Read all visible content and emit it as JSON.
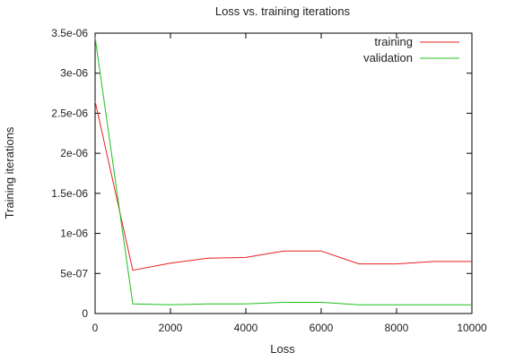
{
  "chart_data": {
    "type": "line",
    "title": "Loss vs. training iterations",
    "xlabel": "Loss",
    "ylabel": "Training iterations",
    "xlim": [
      0,
      10000
    ],
    "ylim": [
      0,
      3.5e-06
    ],
    "x_ticks": [
      0,
      2000,
      4000,
      6000,
      8000,
      10000
    ],
    "x_tick_labels": [
      "0",
      "2000",
      "4000",
      "6000",
      "8000",
      "10000"
    ],
    "y_ticks": [
      0,
      5e-07,
      1e-06,
      1.5e-06,
      2e-06,
      2.5e-06,
      3e-06,
      3.5e-06
    ],
    "y_tick_labels": [
      "0",
      "5e-07",
      "1e-06",
      "1.5e-06",
      "2e-06",
      "2.5e-06",
      "3e-06",
      "3.5e-06"
    ],
    "grid": false,
    "legend_position": "top-right",
    "series": [
      {
        "name": "training",
        "color": "#e8201f",
        "x": [
          0,
          1000,
          2000,
          3000,
          4000,
          5000,
          6000,
          7000,
          8000,
          9000,
          10000
        ],
        "y": [
          2.65e-06,
          5.4e-07,
          6.3e-07,
          6.9e-07,
          7e-07,
          7.8e-07,
          7.8e-07,
          6.2e-07,
          6.2e-07,
          6.5e-07,
          6.5e-07
        ]
      },
      {
        "name": "validation",
        "color": "#1fbf1f",
        "x": [
          0,
          1000,
          2000,
          3000,
          4000,
          5000,
          6000,
          7000,
          8000,
          9000,
          10000
        ],
        "y": [
          3.45e-06,
          1.2e-07,
          1.1e-07,
          1.2e-07,
          1.2e-07,
          1.4e-07,
          1.4e-07,
          1.1e-07,
          1.1e-07,
          1.1e-07,
          1.1e-07
        ]
      }
    ]
  }
}
